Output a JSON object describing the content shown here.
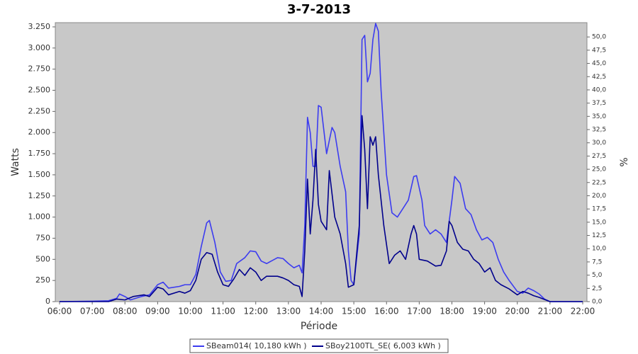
{
  "chart_data": {
    "type": "line",
    "title": "3-7-2013",
    "x_label": "Période",
    "y_label": "Watts",
    "y2_label": "%",
    "xlim": [
      5.87,
      22.13
    ],
    "xticks": [
      {
        "value": 6,
        "label": "06:00"
      },
      {
        "value": 7,
        "label": "07:00"
      },
      {
        "value": 8,
        "label": "08:00"
      },
      {
        "value": 9,
        "label": "09:00"
      },
      {
        "value": 10,
        "label": "10:00"
      },
      {
        "value": 11,
        "label": "11:00"
      },
      {
        "value": 12,
        "label": "12:00"
      },
      {
        "value": 13,
        "label": "13:00"
      },
      {
        "value": 14,
        "label": "14:00"
      },
      {
        "value": 15,
        "label": "15:00"
      },
      {
        "value": 16,
        "label": "16:00"
      },
      {
        "value": 17,
        "label": "17:00"
      },
      {
        "value": 18,
        "label": "18:00"
      },
      {
        "value": 19,
        "label": "19:00"
      },
      {
        "value": 20,
        "label": "20:00"
      },
      {
        "value": 21,
        "label": "21:00"
      },
      {
        "value": 22,
        "label": "22:00"
      }
    ],
    "ylim": [
      0,
      3300
    ],
    "yticks": [
      0,
      250,
      500,
      750,
      {
        "value": 1000,
        "label": "1.000"
      },
      {
        "value": 1250,
        "label": "1.250"
      },
      {
        "value": 1500,
        "label": "1.500"
      },
      {
        "value": 1750,
        "label": "1.750"
      },
      {
        "value": 2000,
        "label": "2.000"
      },
      {
        "value": 2250,
        "label": "2.250"
      },
      {
        "value": 2500,
        "label": "2.500"
      },
      {
        "value": 2750,
        "label": "2.750"
      },
      {
        "value": 3000,
        "label": "3.000"
      },
      {
        "value": 3250,
        "label": "3.250"
      }
    ],
    "y2lim": [
      0,
      52.7
    ],
    "y2ticks": [
      {
        "value": 0,
        "label": "0,0"
      },
      {
        "value": 2.5,
        "label": "2,5"
      },
      {
        "value": 5,
        "label": "5,0"
      },
      {
        "value": 7.5,
        "label": "7,5"
      },
      {
        "value": 10,
        "label": "10,0"
      },
      {
        "value": 12.5,
        "label": "12,5"
      },
      {
        "value": 15,
        "label": "15,0"
      },
      {
        "value": 17.5,
        "label": "17,5"
      },
      {
        "value": 20,
        "label": "20,0"
      },
      {
        "value": 22.5,
        "label": "22,5"
      },
      {
        "value": 25,
        "label": "25,0"
      },
      {
        "value": 27.5,
        "label": "27,5"
      },
      {
        "value": 30,
        "label": "30,0"
      },
      {
        "value": 32.5,
        "label": "32,5"
      },
      {
        "value": 35,
        "label": "35,0"
      },
      {
        "value": 37.5,
        "label": "37,5"
      },
      {
        "value": 40,
        "label": "40,0"
      },
      {
        "value": 42.5,
        "label": "42,5"
      },
      {
        "value": 45,
        "label": "45,0"
      },
      {
        "value": 47.5,
        "label": "47,5"
      },
      {
        "value": 50,
        "label": "50,0"
      }
    ],
    "grid": false,
    "legend": "bottom",
    "series": [
      {
        "name": "SBeam014( 10,180 kWh )",
        "color": "#3c3cf0",
        "x": [
          6,
          7,
          7.5,
          7.75,
          7.833,
          8,
          8.167,
          8.5,
          8.75,
          9,
          9.167,
          9.333,
          9.667,
          9.833,
          10,
          10.167,
          10.333,
          10.5,
          10.583,
          10.75,
          10.917,
          11.083,
          11.25,
          11.417,
          11.667,
          11.833,
          12,
          12.167,
          12.333,
          12.667,
          12.833,
          13,
          13.167,
          13.333,
          13.417,
          13.5,
          13.583,
          13.667,
          13.75,
          13.833,
          13.917,
          14,
          14.167,
          14.333,
          14.417,
          14.583,
          14.75,
          14.833,
          14.917,
          15,
          15.167,
          15.25,
          15.333,
          15.417,
          15.5,
          15.583,
          15.667,
          15.75,
          15.833,
          16,
          16.167,
          16.333,
          16.5,
          16.667,
          16.833,
          16.917,
          17.083,
          17.167,
          17.333,
          17.5,
          17.667,
          17.833,
          18,
          18.083,
          18.25,
          18.417,
          18.583,
          18.75,
          18.917,
          19.083,
          19.25,
          19.417,
          19.583,
          19.75,
          20,
          20.167,
          20.333,
          20.5,
          20.667,
          20.833,
          21,
          22
        ],
        "values": [
          0,
          5,
          10,
          40,
          90,
          60,
          20,
          60,
          80,
          200,
          230,
          160,
          180,
          200,
          200,
          320,
          650,
          930,
          960,
          700,
          350,
          240,
          250,
          450,
          520,
          600,
          590,
          480,
          450,
          520,
          510,
          450,
          400,
          430,
          340,
          900,
          2180,
          2000,
          1600,
          1600,
          2320,
          2300,
          1750,
          2060,
          2000,
          1600,
          1300,
          600,
          250,
          200,
          800,
          3100,
          3150,
          2600,
          2700,
          3100,
          3290,
          3200,
          2500,
          1500,
          1050,
          1000,
          1100,
          1200,
          1480,
          1490,
          1200,
          900,
          800,
          850,
          800,
          700,
          1200,
          1480,
          1400,
          1100,
          1030,
          850,
          730,
          760,
          700,
          500,
          350,
          250,
          120,
          100,
          160,
          130,
          90,
          30,
          0,
          0
        ]
      },
      {
        "name": "SBoy2100TL_SE( 6,003 kWh )",
        "color": "#00008c",
        "x": [
          6,
          7.5,
          7.75,
          8,
          8.25,
          8.583,
          8.75,
          9,
          9.167,
          9.333,
          9.667,
          9.833,
          10,
          10.167,
          10.333,
          10.5,
          10.667,
          10.833,
          11,
          11.167,
          11.333,
          11.5,
          11.667,
          11.833,
          12,
          12.167,
          12.333,
          12.667,
          12.833,
          13,
          13.167,
          13.333,
          13.417,
          13.5,
          13.583,
          13.667,
          13.75,
          13.833,
          13.917,
          14,
          14.167,
          14.25,
          14.417,
          14.583,
          14.75,
          14.833,
          15,
          15.167,
          15.25,
          15.333,
          15.417,
          15.5,
          15.583,
          15.667,
          15.75,
          15.917,
          16.083,
          16.25,
          16.417,
          16.583,
          16.75,
          16.833,
          16.917,
          17,
          17.25,
          17.5,
          17.667,
          17.833,
          17.917,
          18,
          18.167,
          18.333,
          18.5,
          18.667,
          18.833,
          19,
          19.167,
          19.333,
          19.5,
          19.75,
          20,
          20.167,
          20.333,
          20.5,
          20.667,
          21,
          22
        ],
        "values": [
          0,
          0,
          30,
          20,
          60,
          80,
          60,
          170,
          150,
          80,
          120,
          100,
          130,
          250,
          500,
          580,
          560,
          350,
          200,
          180,
          270,
          380,
          310,
          400,
          350,
          250,
          300,
          300,
          280,
          250,
          200,
          180,
          60,
          600,
          1450,
          800,
          1200,
          1800,
          1150,
          950,
          850,
          1550,
          1000,
          800,
          450,
          170,
          200,
          900,
          2200,
          1800,
          1100,
          1950,
          1850,
          1950,
          1500,
          900,
          450,
          550,
          600,
          500,
          800,
          900,
          800,
          500,
          480,
          420,
          430,
          600,
          950,
          900,
          700,
          620,
          600,
          500,
          450,
          350,
          400,
          250,
          200,
          150,
          80,
          120,
          100,
          70,
          50,
          0,
          0
        ]
      }
    ]
  }
}
